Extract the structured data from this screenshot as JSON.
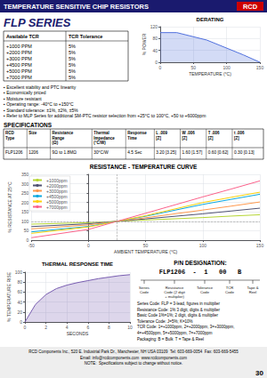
{
  "chart_data": [
    {
      "type": "header",
      "title": "TEMPERATURE SENSITIVE CHIP RESISTORS",
      "logo": "RCD",
      "subtitle": "FLP SERIES",
      "colors": [
        "#1a1a6e",
        "#cc0000"
      ],
      "annotations": [
        "▪ Excellent stability and PTC linearity",
        "▪ Economically priced",
        "▪ Moisture resistant",
        "▪ Operating range: -40°C to +150°C",
        "▪ Standard tolerance: ±1%, ±2%, ±5%",
        "▪ Refer to MLP Series for additional SM-PTC resistor selection from +25°C to 100°C, +50 to +6000ppm"
      ]
    },
    {
      "type": "table",
      "columns": [
        "Available TCR",
        "TCR Tolerance"
      ],
      "rows": [
        [
          "+1000 PPM",
          "5%"
        ],
        [
          "+2000 PPM",
          "5%"
        ],
        [
          "+3000 PPM",
          "5%"
        ],
        [
          "+4500 PPM",
          "5%"
        ],
        [
          "+5000 PPM",
          "5%"
        ],
        [
          "+7000 PPM",
          "5%"
        ]
      ]
    },
    {
      "type": "area",
      "title": "DERATING",
      "x": [
        0,
        25,
        70,
        125,
        150
      ],
      "values": [
        100,
        100,
        75,
        25,
        0
      ],
      "xlabel": "TEMPERATURE (°C)",
      "ylabel": "% POWER",
      "xlim": [
        0,
        150
      ],
      "xticks": [
        0,
        50,
        100,
        150
      ],
      "ylim": [
        0,
        120
      ],
      "yticks": [
        0,
        40,
        80,
        120
      ],
      "grid": true
    },
    {
      "type": "table",
      "title": "SPECIFICATIONS",
      "columns": [
        "RCD\nType",
        "Size",
        "Resistance\nRange\n(Ω)",
        "Thermal\nImpedance\n(°C/W)",
        "Response\nTime",
        "L .009\n[Z]",
        "W .006\n[Z]",
        "T .006\n[Z]",
        "t .006\n[Z]"
      ],
      "rows": [
        [
          "FLP1206",
          "1206",
          "9Ω to 1.8MΩ",
          "30°C/W",
          "4.5 Sec",
          "3.20 [3.25]",
          "1.60 [1.57]",
          "0.60 [0.62]",
          "0.30 [0.13]"
        ]
      ]
    },
    {
      "type": "line",
      "title": "RESISTANCE - TEMPERATURE CURVE",
      "x": [
        -50,
        0,
        25,
        50,
        100,
        125,
        150
      ],
      "series": [
        {
          "name": "+1000ppm",
          "values": [
            85,
            93,
            100,
            107,
            120,
            128,
            135
          ]
        },
        {
          "name": "+2000ppm",
          "values": [
            72,
            87,
            100,
            113,
            140,
            155,
            170
          ]
        },
        {
          "name": "+3000ppm",
          "values": [
            60,
            81,
            100,
            119,
            160,
            181,
            203
          ]
        },
        {
          "name": "+4500ppm",
          "values": [
            44,
            73,
            100,
            127,
            190,
            217,
            244
          ]
        },
        {
          "name": "+5000ppm",
          "values": [
            36,
            70,
            100,
            130,
            200,
            228,
            255
          ]
        },
        {
          "name": "+7000ppm",
          "values": [
            13,
            57,
            100,
            143,
            230,
            272,
            315
          ]
        }
      ],
      "xlabel": "AMBIENT TEMPERATURE (°C)",
      "ylabel": "% RESISTANCE AT 25°C",
      "xlim": [
        -50,
        150
      ],
      "xticks": [
        -50,
        0,
        50,
        100,
        150
      ],
      "ylim": [
        0,
        350
      ],
      "yticks": [
        0,
        50,
        100,
        150,
        200,
        250,
        300,
        350
      ],
      "reference_lines": {
        "x": [
          25
        ],
        "y": [
          100
        ]
      },
      "grid": true,
      "legend": "upper left"
    },
    {
      "type": "area",
      "title": "THERMAL RESPONSE TIME",
      "x": [
        0,
        1,
        2,
        3,
        4,
        5,
        6,
        7,
        8,
        9,
        10
      ],
      "values": [
        0,
        35,
        55,
        67,
        74,
        79,
        83,
        87,
        90,
        93,
        95
      ],
      "xlabel": "SECONDS",
      "ylabel": "% TEMPERATURE RISE",
      "xlim": [
        0,
        10
      ],
      "xticks": [
        0,
        2,
        4,
        6,
        8,
        10
      ],
      "ylim": [
        0,
        100
      ],
      "yticks": [
        0,
        20,
        40,
        60,
        80,
        100
      ],
      "grid": true
    },
    {
      "type": "designation",
      "title": "P/N DESIGNATION:",
      "subtitle": "FLP1206  -  1   00   B",
      "labels": [
        "Series\nCode",
        "Resistance\nCode (2 digit\n+ multiplier)",
        "Tolerance\nCode",
        "TCR\nCode",
        "Tape &\nReel"
      ],
      "annotations": [
        "Series Code: FLP = 3-lead, figures in multiplier",
        "Resistance Code: 1% 3 digit, digits & multiplier",
        "Basic Code 1%=1%; 2 digit, digits & multiplier",
        "Tolerance Code: J=5%; K=10%",
        "TCR Code: 1=+1000ppm, 2=+2000ppm, 3=+3000ppm,",
        "4=+4500ppm, 5=+5000ppm, 7=+7000ppm",
        "Packaging: B = Bulk  T = Tape & Reel"
      ]
    },
    {
      "type": "footer",
      "color": "#eeeeee",
      "annotations": [
        "RCD Components Inc., 520 E. Industrial Park Dr., Manchester, NH USA 03109  Tel: 603-669-0054  Fax: 603-669-5455",
        "Email: info@rcdcomponents.com  www.rcdcomponents.com",
        "NOTE:  Specifications subject to change without notice."
      ],
      "page": 30
    }
  ]
}
